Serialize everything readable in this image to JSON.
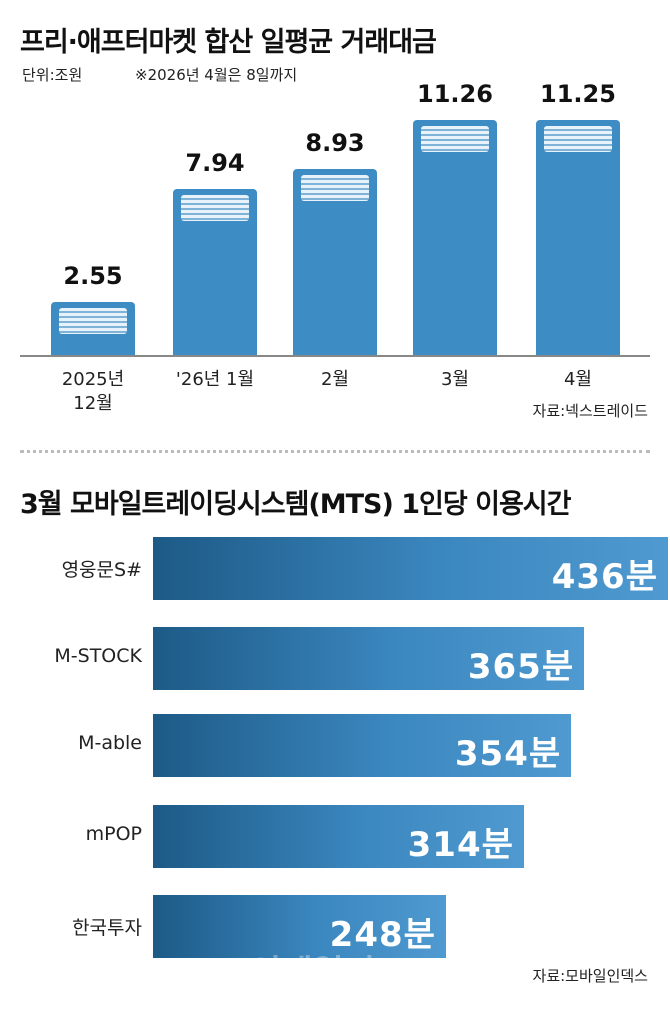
{
  "chart_data": [
    {
      "type": "bar",
      "title": "프리·애프터마켓 합산 일평균 거래대금",
      "subtitle": "단위:조원",
      "note": "※2026년 4월은 8일까지",
      "categories": [
        "2025년 12월",
        "'26년 1월",
        "2월",
        "3월",
        "4월"
      ],
      "values": [
        2.55,
        7.94,
        8.93,
        11.26,
        11.25
      ],
      "color": "#3d8cc4",
      "source": "자료:넥스트레이드"
    },
    {
      "type": "hbar",
      "title": "3월 모바일트레이딩시스템(MTS) 1인당 이용시간",
      "categories": [
        "영웅문S#",
        "M-STOCK",
        "M-able",
        "mPOP",
        "한국투자"
      ],
      "values": [
        436,
        365,
        354,
        314,
        248
      ],
      "value_labels": [
        "436분",
        "365분",
        "354분",
        "314분",
        "248분"
      ],
      "color": "#3a86be",
      "source": "자료:모바일인덱스",
      "watermark": "이데일리"
    }
  ]
}
